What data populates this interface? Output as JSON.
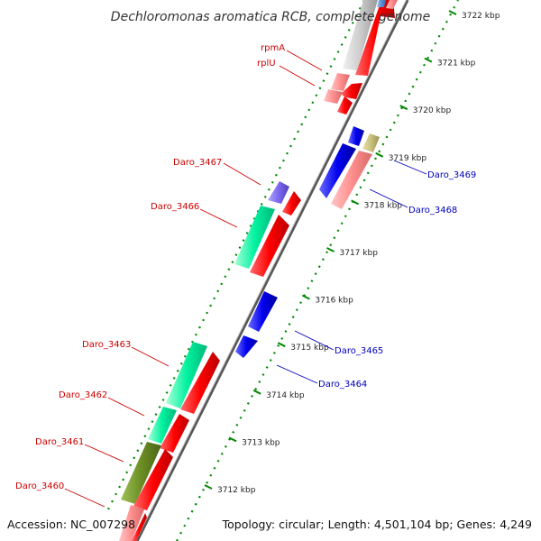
{
  "title": "Dechloromonas aromatica RCB, complete genome",
  "footer": {
    "accession": "Accession: NC_007298",
    "summary": "Topology: circular; Length: 4,501,104 bp; Genes: 4,249"
  },
  "ticks": [
    {
      "kbp": 3712,
      "label": "3712 kbp"
    },
    {
      "kbp": 3713,
      "label": "3713 kbp"
    },
    {
      "kbp": 3714,
      "label": "3714 kbp"
    },
    {
      "kbp": 3715,
      "label": "3715 kbp"
    },
    {
      "kbp": 3716,
      "label": "3716 kbp"
    },
    {
      "kbp": 3717,
      "label": "3717 kbp"
    },
    {
      "kbp": 3718,
      "label": "3718 kbp"
    },
    {
      "kbp": 3719,
      "label": "3719 kbp"
    },
    {
      "kbp": 3720,
      "label": "3720 kbp"
    },
    {
      "kbp": 3721,
      "label": "3721 kbp"
    },
    {
      "kbp": 3722,
      "label": "3722 kbp"
    }
  ],
  "labels": [
    {
      "id": "rpmA",
      "text": "rpmA",
      "color": "#cc0000"
    },
    {
      "id": "rplU",
      "text": "rplU",
      "color": "#cc0000"
    },
    {
      "id": "daro3467",
      "text": "Daro_3467",
      "color": "#cc0000"
    },
    {
      "id": "daro3466",
      "text": "Daro_3466",
      "color": "#cc0000"
    },
    {
      "id": "daro3463",
      "text": "Daro_3463",
      "color": "#cc0000"
    },
    {
      "id": "daro3462",
      "text": "Daro_3462",
      "color": "#cc0000"
    },
    {
      "id": "daro3461",
      "text": "Daro_3461",
      "color": "#cc0000"
    },
    {
      "id": "daro3460",
      "text": "Daro_3460",
      "color": "#cc0000"
    },
    {
      "id": "daro3469",
      "text": "Daro_3469",
      "color": "#0000bb"
    },
    {
      "id": "daro3468",
      "text": "Daro_3468",
      "color": "#0000bb"
    },
    {
      "id": "daro3465",
      "text": "Daro_3465",
      "color": "#0000bb"
    },
    {
      "id": "daro3464",
      "text": "Daro_3464",
      "color": "#0000bb"
    }
  ],
  "colors": {
    "forward_cds": "#ff0000",
    "reverse_cds": "#0000ee",
    "backbone": "#888888",
    "ticks": "#008800"
  }
}
